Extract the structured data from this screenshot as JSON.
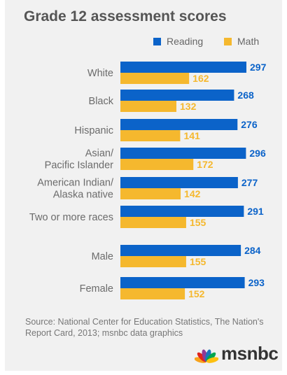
{
  "title": "Grade 12 assessment scores",
  "legend": {
    "reading": "Reading",
    "math": "Math"
  },
  "colors": {
    "reading": "#0b63c9",
    "math": "#f5b82e"
  },
  "chart_data": {
    "type": "bar",
    "orientation": "horizontal",
    "title": "Grade 12 assessment scores",
    "categories": [
      [
        "White"
      ],
      [
        "Black"
      ],
      [
        "Hispanic"
      ],
      [
        "Asian/",
        "Pacific Islander"
      ],
      [
        "American Indian/",
        "Alaska native"
      ],
      [
        "Two or more races"
      ],
      [
        "Male"
      ],
      [
        "Female"
      ]
    ],
    "series": [
      {
        "name": "Reading",
        "values": [
          297,
          268,
          276,
          296,
          277,
          291,
          284,
          293
        ]
      },
      {
        "name": "Math",
        "values": [
          162,
          132,
          141,
          172,
          142,
          155,
          155,
          152
        ]
      }
    ],
    "legend_position": "top-right",
    "grid": false
  },
  "footnote": "Source: National Center for Education Statistics, The Nation's Report Card, 2013; msnbc data graphics",
  "logo": {
    "wordmark": "msnbc",
    "icon": "peacock-icon"
  }
}
